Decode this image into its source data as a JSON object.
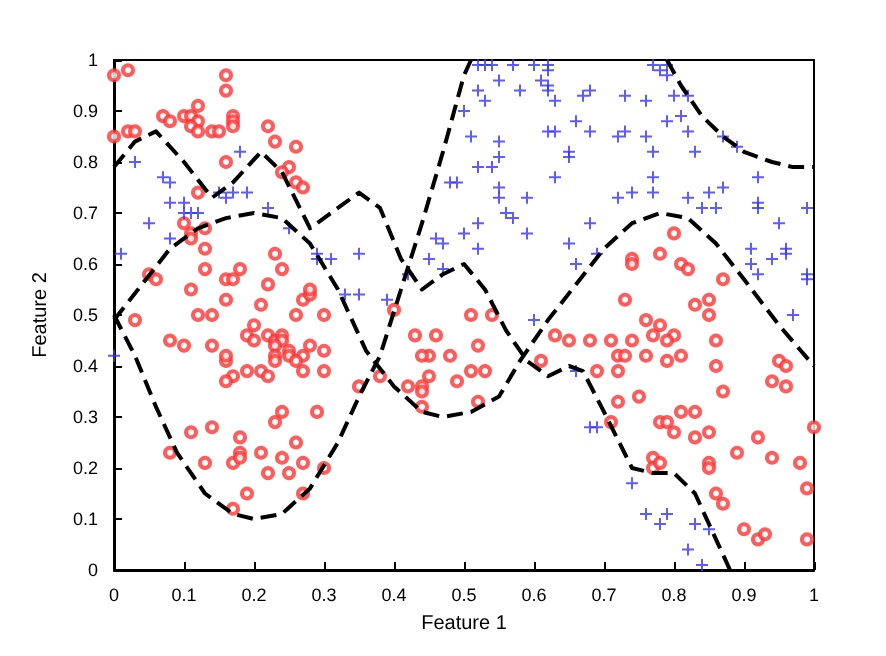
{
  "chart_data": {
    "type": "scatter",
    "xlabel": "Feature 1",
    "ylabel": "Feature 2",
    "xlim": [
      0,
      1
    ],
    "ylim": [
      0,
      1
    ],
    "xticks": [
      0,
      0.1,
      0.2,
      0.3,
      0.4,
      0.5,
      0.6,
      0.7,
      0.8,
      0.9,
      1
    ],
    "yticks": [
      0,
      0.1,
      0.2,
      0.3,
      0.4,
      0.5,
      0.6,
      0.7,
      0.8,
      0.9,
      1
    ],
    "series": [
      {
        "marker": "circle",
        "color": "#ff3333",
        "x": [
          0.0,
          0.02,
          0.0,
          0.02,
          0.03,
          0.07,
          0.08,
          0.1,
          0.11,
          0.12,
          0.12,
          0.11,
          0.12,
          0.14,
          0.15,
          0.16,
          0.16,
          0.17,
          0.17,
          0.17,
          0.22,
          0.16,
          0.23,
          0.26,
          0.25,
          0.24,
          0.26,
          0.27,
          0.12,
          0.1,
          0.11,
          0.11,
          0.13,
          0.13,
          0.13,
          0.05,
          0.06,
          0.16,
          0.17,
          0.18,
          0.22,
          0.23,
          0.24,
          0.27,
          0.28,
          0.28,
          0.11,
          0.16,
          0.21,
          0.03,
          0.12,
          0.14,
          0.26,
          0.3,
          0.2,
          0.08,
          0.1,
          0.14,
          0.16,
          0.16,
          0.17,
          0.16,
          0.19,
          0.2,
          0.22,
          0.23,
          0.24,
          0.24,
          0.23,
          0.23,
          0.25,
          0.25,
          0.27,
          0.26,
          0.19,
          0.21,
          0.23,
          0.22,
          0.28,
          0.27,
          0.3,
          0.3,
          0.11,
          0.14,
          0.18,
          0.18,
          0.13,
          0.17,
          0.18,
          0.21,
          0.24,
          0.23,
          0.29,
          0.08,
          0.24,
          0.22,
          0.25,
          0.27,
          0.26,
          0.19,
          0.27,
          0.17,
          0.3,
          0.4,
          0.51,
          0.54,
          0.43,
          0.46,
          0.45,
          0.44,
          0.48,
          0.52,
          0.63,
          0.65,
          0.35,
          0.38,
          0.42,
          0.44,
          0.44,
          0.45,
          0.49,
          0.51,
          0.53,
          0.52,
          0.44,
          0.61,
          0.8,
          0.78,
          0.74,
          0.74,
          0.81,
          0.82,
          0.87,
          0.73,
          0.83,
          0.85,
          0.85,
          0.76,
          0.78,
          0.8,
          0.79,
          0.77,
          0.68,
          0.71,
          0.74,
          0.72,
          0.73,
          0.76,
          0.79,
          0.81,
          0.86,
          0.69,
          0.72,
          0.86,
          0.95,
          0.96,
          0.94,
          0.96,
          0.87,
          0.72,
          0.75,
          0.71,
          0.78,
          0.79,
          0.81,
          0.83,
          0.85,
          0.83,
          0.8,
          0.92,
          1.0,
          0.89,
          0.94,
          0.98,
          0.77,
          0.77,
          0.78,
          0.85,
          0.85,
          0.86,
          0.87,
          0.99,
          0.9,
          0.92,
          0.93,
          0.99
        ],
        "values": [
          0.97,
          0.98,
          0.85,
          0.86,
          0.86,
          0.89,
          0.88,
          0.89,
          0.89,
          0.88,
          0.91,
          0.87,
          0.86,
          0.86,
          0.86,
          0.94,
          0.97,
          0.89,
          0.88,
          0.87,
          0.87,
          0.8,
          0.84,
          0.83,
          0.79,
          0.78,
          0.76,
          0.75,
          0.74,
          0.68,
          0.66,
          0.65,
          0.63,
          0.67,
          0.59,
          0.58,
          0.57,
          0.57,
          0.57,
          0.59,
          0.56,
          0.62,
          0.59,
          0.53,
          0.54,
          0.55,
          0.55,
          0.53,
          0.52,
          0.49,
          0.5,
          0.5,
          0.5,
          0.5,
          0.48,
          0.45,
          0.44,
          0.44,
          0.41,
          0.42,
          0.38,
          0.37,
          0.46,
          0.45,
          0.46,
          0.45,
          0.46,
          0.45,
          0.44,
          0.42,
          0.43,
          0.42,
          0.42,
          0.41,
          0.39,
          0.39,
          0.41,
          0.38,
          0.44,
          0.39,
          0.43,
          0.39,
          0.27,
          0.28,
          0.26,
          0.23,
          0.21,
          0.21,
          0.22,
          0.23,
          0.31,
          0.29,
          0.31,
          0.23,
          0.22,
          0.19,
          0.19,
          0.21,
          0.25,
          0.15,
          0.15,
          0.12,
          0.2,
          0.51,
          0.5,
          0.5,
          0.46,
          0.46,
          0.42,
          0.42,
          0.42,
          0.44,
          0.46,
          0.45,
          0.36,
          0.38,
          0.36,
          0.36,
          0.35,
          0.38,
          0.37,
          0.39,
          0.39,
          0.33,
          0.32,
          0.41,
          0.66,
          0.62,
          0.61,
          0.6,
          0.6,
          0.59,
          0.57,
          0.53,
          0.52,
          0.53,
          0.5,
          0.49,
          0.48,
          0.46,
          0.45,
          0.46,
          0.45,
          0.45,
          0.45,
          0.42,
          0.42,
          0.42,
          0.41,
          0.42,
          0.45,
          0.39,
          0.39,
          0.4,
          0.41,
          0.4,
          0.37,
          0.36,
          0.35,
          0.33,
          0.34,
          0.29,
          0.29,
          0.29,
          0.31,
          0.31,
          0.27,
          0.26,
          0.27,
          0.26,
          0.28,
          0.23,
          0.22,
          0.21,
          0.22,
          0.2,
          0.21,
          0.21,
          0.2,
          0.15,
          0.13,
          0.16,
          0.08,
          0.06,
          0.07,
          0.06
        ]
      },
      {
        "marker": "cross",
        "color": "#3333ff",
        "x": [
          0.03,
          0.07,
          0.08,
          0.08,
          0.1,
          0.1,
          0.11,
          0.12,
          0.17,
          0.15,
          0.16,
          0.19,
          0.18,
          0.22,
          0.25,
          0.01,
          0.05,
          0.08,
          0.29,
          0.29,
          0.31,
          0.33,
          0.0,
          0.52,
          0.53,
          0.54,
          0.57,
          0.6,
          0.62,
          0.62,
          0.61,
          0.62,
          0.62,
          0.63,
          0.58,
          0.52,
          0.53,
          0.5,
          0.55,
          0.67,
          0.66,
          0.62,
          0.63,
          0.51,
          0.55,
          0.65,
          0.65,
          0.55,
          0.52,
          0.54,
          0.63,
          0.48,
          0.49,
          0.55,
          0.55,
          0.59,
          0.56,
          0.57,
          0.5,
          0.52,
          0.46,
          0.47,
          0.59,
          0.52,
          0.45,
          0.65,
          0.35,
          0.47,
          0.66,
          0.42,
          0.35,
          0.39,
          0.6,
          0.77,
          0.79,
          0.78,
          0.79,
          0.68,
          0.73,
          0.76,
          0.8,
          0.82,
          0.79,
          0.81,
          0.82,
          0.68,
          0.72,
          0.73,
          0.76,
          0.77,
          0.87,
          0.89,
          0.83,
          0.92,
          0.77,
          0.74,
          0.77,
          0.72,
          0.82,
          0.85,
          0.87,
          0.84,
          0.86,
          0.92,
          0.92,
          0.68,
          0.95,
          0.91,
          0.96,
          0.96,
          0.69,
          0.94,
          0.91,
          0.92,
          0.99,
          0.99,
          0.97,
          0.99,
          0.66,
          0.68,
          0.69,
          0.74,
          0.76,
          0.78,
          0.79,
          0.83,
          0.85,
          0.82,
          0.84
        ],
        "values": [
          0.8,
          0.77,
          0.76,
          0.72,
          0.72,
          0.7,
          0.7,
          0.7,
          0.74,
          0.74,
          0.73,
          0.74,
          0.82,
          0.71,
          0.67,
          0.62,
          0.68,
          0.65,
          0.62,
          0.61,
          0.61,
          0.54,
          0.42,
          0.99,
          0.99,
          0.99,
          0.99,
          0.99,
          0.99,
          0.98,
          0.96,
          0.95,
          0.94,
          0.92,
          0.94,
          0.94,
          0.92,
          0.9,
          0.96,
          0.93,
          0.88,
          0.86,
          0.86,
          0.85,
          0.84,
          0.82,
          0.81,
          0.81,
          0.79,
          0.79,
          0.77,
          0.76,
          0.76,
          0.75,
          0.73,
          0.73,
          0.7,
          0.69,
          0.66,
          0.68,
          0.65,
          0.64,
          0.66,
          0.63,
          0.61,
          0.64,
          0.62,
          0.59,
          0.6,
          0.58,
          0.54,
          0.53,
          0.49,
          0.99,
          0.99,
          0.98,
          0.97,
          0.94,
          0.93,
          0.92,
          0.93,
          0.93,
          0.88,
          0.89,
          0.86,
          0.86,
          0.85,
          0.86,
          0.85,
          0.82,
          0.85,
          0.83,
          0.82,
          0.77,
          0.77,
          0.74,
          0.74,
          0.73,
          0.73,
          0.74,
          0.75,
          0.71,
          0.71,
          0.71,
          0.72,
          0.68,
          0.68,
          0.63,
          0.63,
          0.62,
          0.62,
          0.61,
          0.6,
          0.58,
          0.58,
          0.57,
          0.5,
          0.71,
          0.39,
          0.28,
          0.28,
          0.17,
          0.11,
          0.09,
          0.11,
          0.09,
          0.08,
          0.04,
          0.01
        ]
      },
      {
        "type": "line",
        "marker": "none",
        "line_style": "dashed",
        "color": "#000000",
        "x": [
          0,
          0.03,
          0.06,
          0.1,
          0.14,
          0.17,
          0.21,
          0.24,
          0.28,
          0.31,
          0.35,
          0.38,
          0.41,
          0.44,
          0.47,
          0.5,
          0.53,
          0.56,
          0.59,
          0.62,
          0.65,
          0.67,
          0.7,
          0.74,
          0.77,
          0.8,
          0.83,
          0.86,
          0.88
        ],
        "values": [
          0.79,
          0.84,
          0.86,
          0.8,
          0.73,
          0.76,
          0.82,
          0.78,
          0.67,
          0.7,
          0.74,
          0.71,
          0.61,
          0.55,
          0.58,
          0.6,
          0.55,
          0.47,
          0.41,
          0.38,
          0.4,
          0.39,
          0.31,
          0.2,
          0.19,
          0.19,
          0.15,
          0.06,
          0
        ]
      },
      {
        "type": "line",
        "marker": "none",
        "line_style": "dashed",
        "color": "#000000",
        "x": [
          0,
          0.03,
          0.06,
          0.09,
          0.13,
          0.17,
          0.2,
          0.24,
          0.28,
          0.32,
          0.35,
          0.38,
          0.41,
          0.44,
          0.47,
          0.5,
          0.51
        ],
        "values": [
          0.5,
          0.42,
          0.32,
          0.23,
          0.15,
          0.11,
          0.1,
          0.11,
          0.16,
          0.25,
          0.34,
          0.42,
          0.55,
          0.68,
          0.82,
          0.97,
          1.0
        ]
      },
      {
        "type": "line",
        "marker": "none",
        "line_style": "dashed",
        "color": "#000000",
        "x": [
          0,
          0.04,
          0.08,
          0.12,
          0.16,
          0.2,
          0.24,
          0.28,
          0.32,
          0.36,
          0.4,
          0.44,
          0.47,
          0.51,
          0.55,
          0.58,
          0.62,
          0.66,
          0.7,
          0.74,
          0.78,
          0.82,
          0.86,
          0.9,
          0.95,
          1
        ],
        "values": [
          0.49,
          0.56,
          0.63,
          0.67,
          0.69,
          0.7,
          0.69,
          0.64,
          0.55,
          0.43,
          0.36,
          0.31,
          0.3,
          0.31,
          0.34,
          0.41,
          0.49,
          0.56,
          0.63,
          0.68,
          0.7,
          0.69,
          0.64,
          0.57,
          0.48,
          0.4
        ]
      },
      {
        "type": "line",
        "marker": "none",
        "line_style": "dashed",
        "color": "#000000",
        "x": [
          0.79,
          0.81,
          0.84,
          0.87,
          0.9,
          0.94,
          0.97,
          1
        ],
        "values": [
          1.0,
          0.95,
          0.89,
          0.85,
          0.82,
          0.8,
          0.79,
          0.79
        ]
      }
    ]
  }
}
